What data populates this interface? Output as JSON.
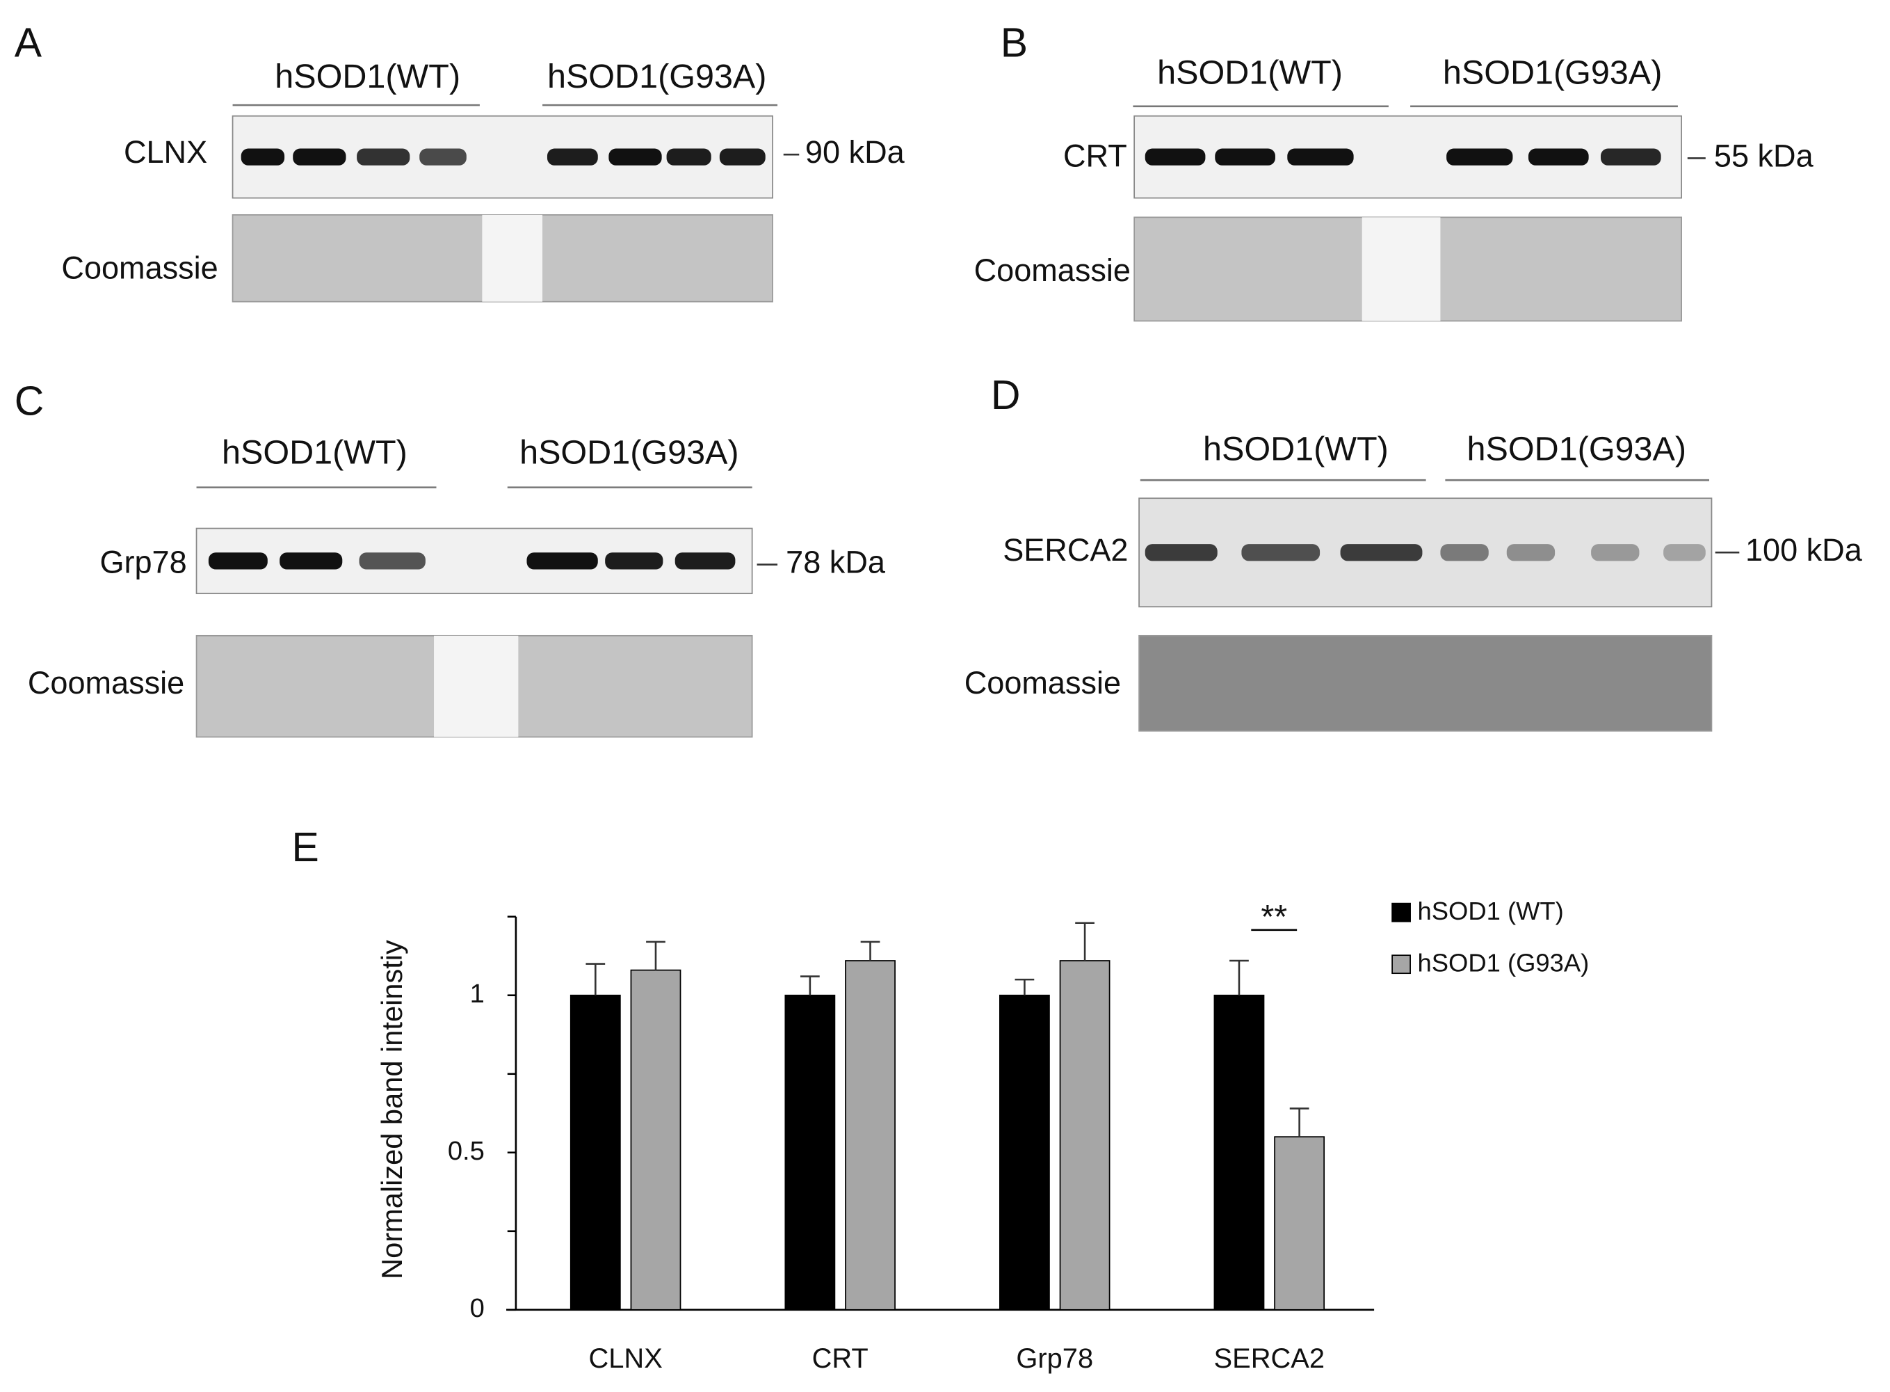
{
  "panels": [
    {
      "letter": "A",
      "groups": [
        "hSOD1(WT)",
        "hSOD1(G93A)"
      ],
      "protein": "CLNX",
      "loading": "Coomassie",
      "marker": "90 kDa"
    },
    {
      "letter": "B",
      "groups": [
        "hSOD1(WT)",
        "hSOD1(G93A)"
      ],
      "protein": "CRT",
      "loading": "Coomassie",
      "marker": "55 kDa"
    },
    {
      "letter": "C",
      "groups": [
        "hSOD1(WT)",
        "hSOD1(G93A)"
      ],
      "protein": "Grp78",
      "loading": "Coomassie",
      "marker": "78 kDa"
    },
    {
      "letter": "D",
      "groups": [
        "hSOD1(WT)",
        "hSOD1(G93A)"
      ],
      "protein": "SERCA2",
      "loading": "Coomassie",
      "marker": "100 kDa"
    }
  ],
  "chart_data": {
    "type": "bar",
    "letter": "E",
    "ylabel": "Normalized band inteinstiy",
    "categories": [
      "CLNX",
      "CRT",
      "Grp78",
      "SERCA2"
    ],
    "series": [
      {
        "name": "hSOD1 (WT)",
        "color": "#000000",
        "values": [
          1,
          1,
          1,
          1
        ],
        "errors": [
          0.1,
          0.06,
          0.05,
          0.11
        ]
      },
      {
        "name": "hSOD1 (G93A)",
        "color": "#a6a6a6",
        "values": [
          1.08,
          1.11,
          1.11,
          0.55
        ],
        "errors": [
          0.09,
          0.06,
          0.12,
          0.09
        ]
      }
    ],
    "ylim": [
      0,
      1.25
    ],
    "yticks": [
      0,
      0.5,
      1
    ],
    "minor_yticks": [
      0.25,
      0.75,
      1.25
    ],
    "annotations": [
      {
        "text": "**",
        "category": 3
      }
    ]
  }
}
